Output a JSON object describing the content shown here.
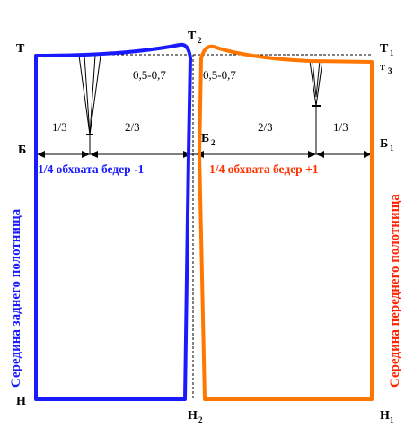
{
  "points": {
    "T": "Т",
    "T2": "Т",
    "T2_sub": "2",
    "T1": "Т",
    "T1_sub": "1",
    "t3": "т",
    "t3_sub": "3",
    "B": "Б",
    "B2": "Б",
    "B2_sub": "2",
    "B1": "Б",
    "B1_sub": "1",
    "N": "Н",
    "N2": "Н",
    "N2_sub": "2",
    "N1": "Н",
    "N1_sub": "1"
  },
  "offsets": {
    "left": "0,5-0,7",
    "right": "0,5-0,7"
  },
  "fractions": {
    "back_left": "1/3",
    "back_right": "2/3",
    "front_left": "2/3",
    "front_right": "1/3"
  },
  "measurements": {
    "back_width": "1/4 обхвата бедер -1",
    "front_width": "1/4 обхвата бедер +1"
  },
  "side_labels": {
    "back_center": "Середина заднего полотнища",
    "front_center": "Середина переднего полотнища"
  },
  "colors": {
    "back_panel": "#1a1aff",
    "front_panel": "#ff7700",
    "front_text": "#ff3300"
  }
}
